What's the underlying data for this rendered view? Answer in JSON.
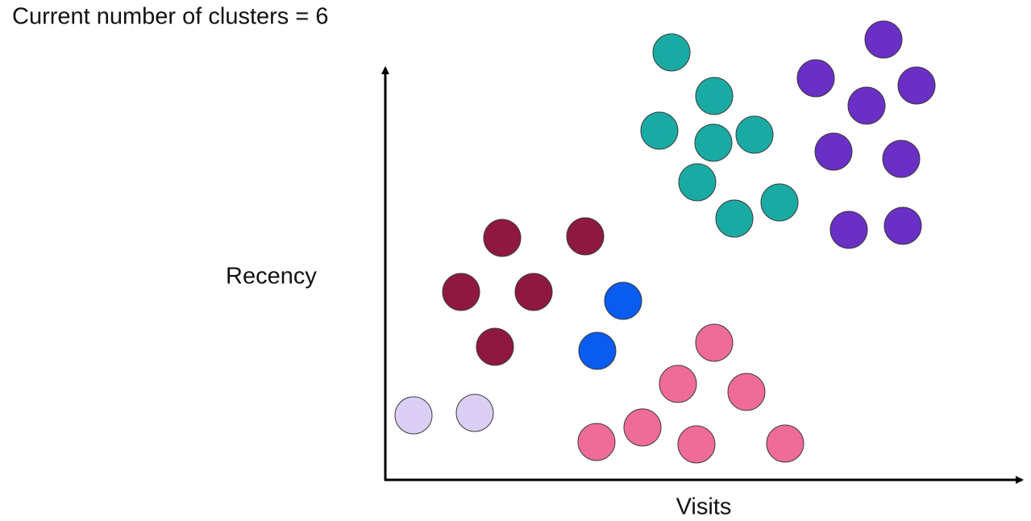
{
  "header": {
    "title": "Current number of clusters = 6"
  },
  "axes": {
    "y_label": "Recency",
    "x_label": "Visits"
  }
}
